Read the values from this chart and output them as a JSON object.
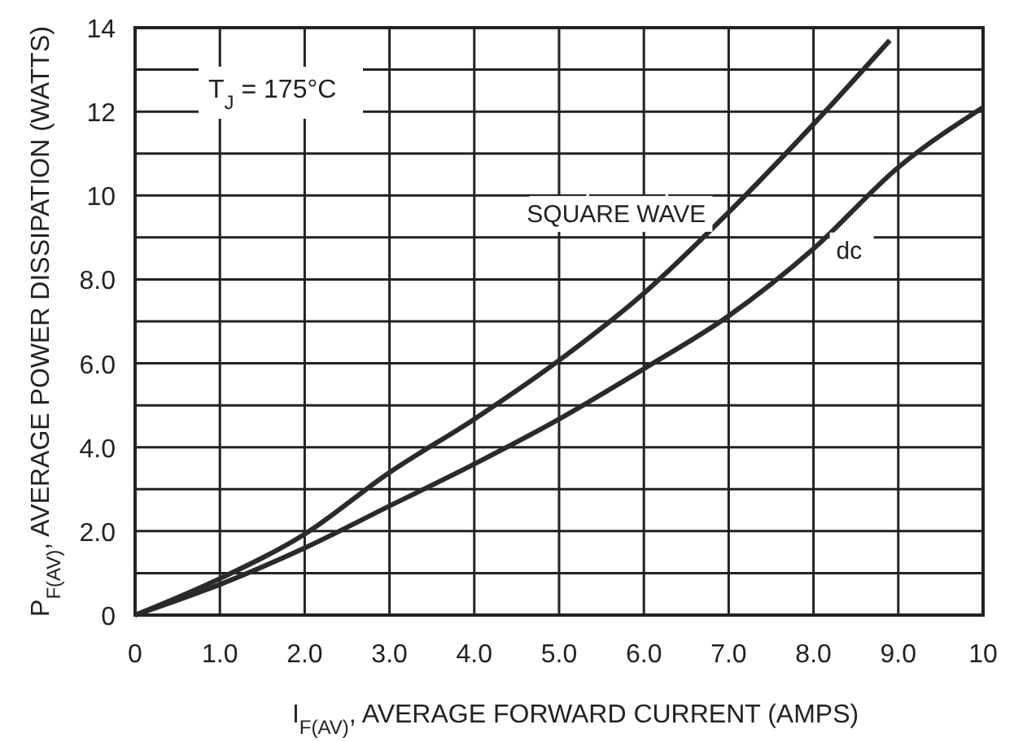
{
  "chart_data": {
    "type": "line",
    "xlabel": "I$_{F(AV)}$, AVERAGE FORWARD CURRENT (AMPS)",
    "ylabel": "P$_{F(AV)}$, AVERAGE POWER DISSIPATION (WATTS)",
    "annotations": [
      "T$_{J}$ = 175°C"
    ],
    "series": [
      {
        "name": "SQUARE WAVE",
        "color": "#2a2a2a",
        "x": [
          0,
          1,
          2,
          3,
          4,
          5,
          6,
          7,
          8,
          8.9
        ],
        "values": [
          0,
          0.87,
          1.93,
          3.4,
          4.67,
          6.07,
          7.67,
          9.6,
          11.7,
          13.7
        ]
      },
      {
        "name": "dc",
        "color": "#2a2a2a",
        "x": [
          0,
          1,
          2,
          3,
          4,
          5,
          6,
          7,
          8,
          9,
          10
        ],
        "values": [
          0,
          0.73,
          1.6,
          2.6,
          3.6,
          4.67,
          5.87,
          7.13,
          8.73,
          10.67,
          12.1
        ]
      }
    ],
    "xlim": [
      0,
      10
    ],
    "ylim": [
      0,
      14
    ],
    "xticks": [
      0,
      {
        "value": 1,
        "label": "1.0"
      },
      {
        "value": 2,
        "label": "2.0"
      },
      {
        "value": 3,
        "label": "3.0"
      },
      {
        "value": 4,
        "label": "4.0"
      },
      {
        "value": 5,
        "label": "5.0"
      },
      {
        "value": 6,
        "label": "6.0"
      },
      {
        "value": 7,
        "label": "7.0"
      },
      {
        "value": 8,
        "label": "8.0"
      },
      {
        "value": 9,
        "label": "9.0"
      },
      10
    ],
    "yticks": [
      0,
      {
        "value": 1,
        "label": null
      },
      {
        "value": 2,
        "label": "2.0"
      },
      {
        "value": 3,
        "label": null
      },
      {
        "value": 4,
        "label": "4.0"
      },
      {
        "value": 5,
        "label": null
      },
      {
        "value": 6,
        "label": "6.0"
      },
      {
        "value": 7,
        "label": null
      },
      {
        "value": 8,
        "label": "8.0"
      },
      {
        "value": 9,
        "label": null
      },
      10,
      {
        "value": 11,
        "label": null
      },
      12,
      {
        "value": 13,
        "label": null
      },
      14
    ],
    "grid": true,
    "marker": "none",
    "line_style": "solid"
  }
}
